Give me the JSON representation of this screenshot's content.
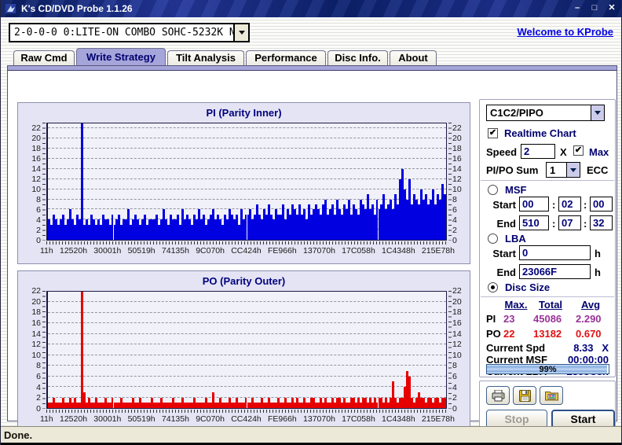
{
  "window": {
    "title": "K's CD/DVD Probe 1.1.26",
    "controls": {
      "minimize": "–",
      "maximize": "□",
      "close": "✕"
    }
  },
  "toolbar": {
    "device": "2-0-0-0 0:LITE-ON COMBO SOHC-5232K NK07",
    "welcome_link": "Welcome to KProbe"
  },
  "tabs": [
    {
      "label": "Raw Cmd",
      "active": false
    },
    {
      "label": "Write Strategy",
      "active": true
    },
    {
      "label": "Tilt Analysis",
      "active": false
    },
    {
      "label": "Performance",
      "active": false
    },
    {
      "label": "Disc Info.",
      "active": false
    },
    {
      "label": "About",
      "active": false
    }
  ],
  "chart_data": [
    {
      "type": "bar",
      "title": "PI (Parity Inner)",
      "color": "#0000e0",
      "ylim": [
        0,
        23
      ],
      "ytick_step": 2,
      "grid": "dashed-horizontal",
      "x_ticklabels": [
        "11h",
        "12520h",
        "30001h",
        "50519h",
        "74135h",
        "9C070h",
        "CC424h",
        "FE966h",
        "137070h",
        "17C058h",
        "1C4348h",
        "215E78h"
      ],
      "max_marker": {
        "index": 14,
        "value": 23
      },
      "values": [
        4,
        3,
        5,
        4,
        3,
        4,
        5,
        3,
        4,
        6,
        4,
        3,
        5,
        4,
        23,
        3,
        4,
        3,
        5,
        4,
        3,
        4,
        3,
        5,
        4,
        4,
        3,
        5,
        3,
        4,
        5,
        3,
        4,
        4,
        6,
        3,
        4,
        5,
        4,
        3,
        4,
        5,
        3,
        4,
        4,
        4,
        5,
        3,
        4,
        6,
        4,
        3,
        5,
        4,
        4,
        5,
        3,
        6,
        4,
        5,
        4,
        3,
        5,
        4,
        6,
        4,
        5,
        3,
        4,
        5,
        6,
        4,
        5,
        4,
        3,
        5,
        4,
        6,
        5,
        4,
        5,
        3,
        6,
        4,
        5,
        5,
        6,
        4,
        5,
        7,
        5,
        4,
        6,
        5,
        7,
        5,
        4,
        6,
        5,
        5,
        7,
        4,
        6,
        5,
        7,
        6,
        5,
        7,
        5,
        6,
        4,
        7,
        5,
        6,
        7,
        6,
        5,
        7,
        8,
        5,
        6,
        7,
        5,
        8,
        6,
        5,
        7,
        6,
        8,
        5,
        7,
        6,
        5,
        8,
        7,
        6,
        9,
        6,
        7,
        5,
        8,
        6,
        7,
        9,
        6,
        7,
        8,
        6,
        9,
        7,
        12,
        14,
        10,
        8,
        12,
        7,
        9,
        8,
        7,
        10,
        8,
        9,
        7,
        8,
        10,
        7,
        9,
        8,
        11,
        9
      ]
    },
    {
      "type": "bar",
      "title": "PO (Parity Outer)",
      "color": "#e60000",
      "ylim": [
        0,
        22
      ],
      "ytick_step": 2,
      "grid": "dashed-horizontal",
      "x_ticklabels": [
        "11h",
        "12520h",
        "30001h",
        "50519h",
        "74135h",
        "9C070h",
        "CC424h",
        "FE966h",
        "137070h",
        "17C058h",
        "1C4348h",
        "215E78h"
      ],
      "max_marker": {
        "index": 14,
        "value": 22
      },
      "values": [
        1,
        1,
        2,
        1,
        1,
        1,
        2,
        1,
        1,
        2,
        1,
        2,
        1,
        1,
        22,
        3,
        1,
        2,
        1,
        1,
        2,
        1,
        1,
        1,
        2,
        1,
        1,
        2,
        1,
        1,
        1,
        2,
        1,
        1,
        1,
        1,
        2,
        1,
        1,
        2,
        1,
        1,
        1,
        1,
        2,
        1,
        1,
        1,
        2,
        1,
        1,
        1,
        1,
        2,
        1,
        1,
        1,
        2,
        1,
        1,
        1,
        1,
        2,
        1,
        1,
        1,
        1,
        2,
        1,
        1,
        3,
        1,
        1,
        2,
        1,
        1,
        1,
        2,
        1,
        1,
        2,
        1,
        1,
        1,
        2,
        1,
        1,
        2,
        1,
        1,
        1,
        2,
        1,
        1,
        2,
        1,
        1,
        1,
        2,
        1,
        1,
        2,
        1,
        1,
        2,
        1,
        2,
        1,
        1,
        2,
        1,
        1,
        2,
        2,
        1,
        1,
        2,
        1,
        2,
        1,
        1,
        2,
        1,
        2,
        2,
        1,
        2,
        1,
        1,
        2,
        2,
        1,
        2,
        1,
        2,
        2,
        1,
        2,
        1,
        2,
        1,
        2,
        2,
        1,
        2,
        1,
        2,
        5,
        2,
        1,
        2,
        2,
        4,
        7,
        6,
        2,
        1,
        2,
        3,
        2,
        2,
        1,
        2,
        2,
        1,
        2,
        2,
        1,
        2,
        2
      ]
    }
  ],
  "panel": {
    "mode_select": "C1C2/PIPO",
    "realtime_label": "Realtime Chart",
    "speed_label": "Speed",
    "speed_value": "2",
    "speed_unit": "X",
    "max_label": "Max",
    "pipo_sum_label": "PI/PO Sum",
    "pipo_sum_value": "1",
    "ecc_label": "ECC",
    "msf": {
      "label": "MSF",
      "start_label": "Start",
      "end_label": "End",
      "colon": ":",
      "start": [
        "00",
        "02",
        "00"
      ],
      "end": [
        "510",
        "07",
        "32"
      ]
    },
    "lba": {
      "label": "LBA",
      "start_label": "Start",
      "end_label": "End",
      "unit": "h",
      "start": "0",
      "end": "23066F"
    },
    "disc_size_label": "Disc Size",
    "stats": {
      "headers": [
        "Max.",
        "Total",
        "Avg"
      ],
      "rows": [
        {
          "label": "PI",
          "max": "23",
          "total": "45086",
          "avg": "2.290",
          "color": "#993399"
        },
        {
          "label": "PO",
          "max": "22",
          "total": "13182",
          "avg": "0.670",
          "color": "#e01010"
        }
      ],
      "current": [
        {
          "label": "Current Spd",
          "value": "8.33   X"
        },
        {
          "label": "Current MSF",
          "value": "00:00:00"
        },
        {
          "label": "Current LBA",
          "value": "2305C8h"
        }
      ]
    },
    "progress": {
      "percent": 99,
      "label": "99%"
    },
    "actions": {
      "stop": "Stop",
      "start": "Start"
    }
  },
  "status": "Done.",
  "colors": {
    "titlebar": "#0c2270",
    "accent_navy": "#00006e",
    "pi_bar": "#0000e0",
    "po_bar": "#e60000",
    "pi_stat": "#993399",
    "po_stat": "#e01010",
    "selected_tab": "#a5a5da",
    "panel_bg": "#e4e4f4",
    "statusbar_bg": "#ece9d8"
  }
}
